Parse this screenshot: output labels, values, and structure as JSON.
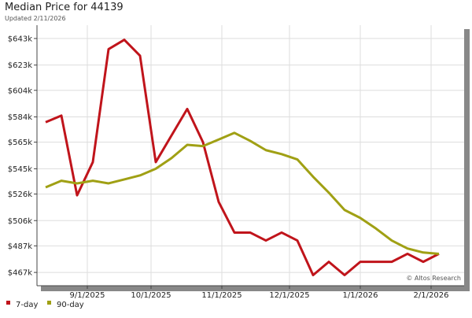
{
  "chart_data": {
    "type": "line",
    "title": "Median Price for 44139",
    "subtitle": "Updated 2/11/2026",
    "annotation": "© Altos Research",
    "categories": [
      null,
      null,
      null,
      null,
      null,
      null,
      null,
      null,
      null,
      null,
      null,
      null,
      null,
      null,
      null,
      null,
      null,
      null,
      null,
      null,
      null,
      null,
      null,
      null,
      null,
      null
    ],
    "xticks": [
      {
        "value": 2.65,
        "label": "9/1/2025"
      },
      {
        "value": 6.7,
        "label": "10/1/2025"
      },
      {
        "value": 11.2,
        "label": "11/1/2025"
      },
      {
        "value": 15.5,
        "label": "12/1/2025"
      },
      {
        "value": 20,
        "label": "1/1/2026"
      },
      {
        "value": 24.5,
        "label": "2/1/2026"
      }
    ],
    "ylim": [
      457,
      653
    ],
    "yticks": [
      {
        "value": 467,
        "label": "$467k"
      },
      {
        "value": 487,
        "label": "$487k"
      },
      {
        "value": 506,
        "label": "$506k"
      },
      {
        "value": 526,
        "label": "$526k"
      },
      {
        "value": 545,
        "label": "$545k"
      },
      {
        "value": 565,
        "label": "$565k"
      },
      {
        "value": 584,
        "label": "$584k"
      },
      {
        "value": 604,
        "label": "$604k"
      },
      {
        "value": 623,
        "label": "$623k"
      },
      {
        "value": 643,
        "label": "$643k"
      }
    ],
    "grid": true,
    "series": [
      {
        "name": "7-day",
        "color": "#c0141b",
        "values": [
          580,
          585,
          525,
          550,
          635,
          642,
          630,
          550,
          570,
          590,
          565,
          520,
          497,
          497,
          491,
          497,
          491,
          465,
          475,
          465,
          475,
          475,
          475,
          481,
          475,
          481
        ]
      },
      {
        "name": "90-day",
        "color": "#a0a014",
        "values": [
          531,
          536,
          534,
          536,
          534,
          537,
          540,
          545,
          553,
          563,
          562,
          567,
          572,
          566,
          559,
          556,
          552,
          539,
          527,
          514,
          508,
          500,
          491,
          485,
          482,
          481
        ]
      }
    ]
  }
}
